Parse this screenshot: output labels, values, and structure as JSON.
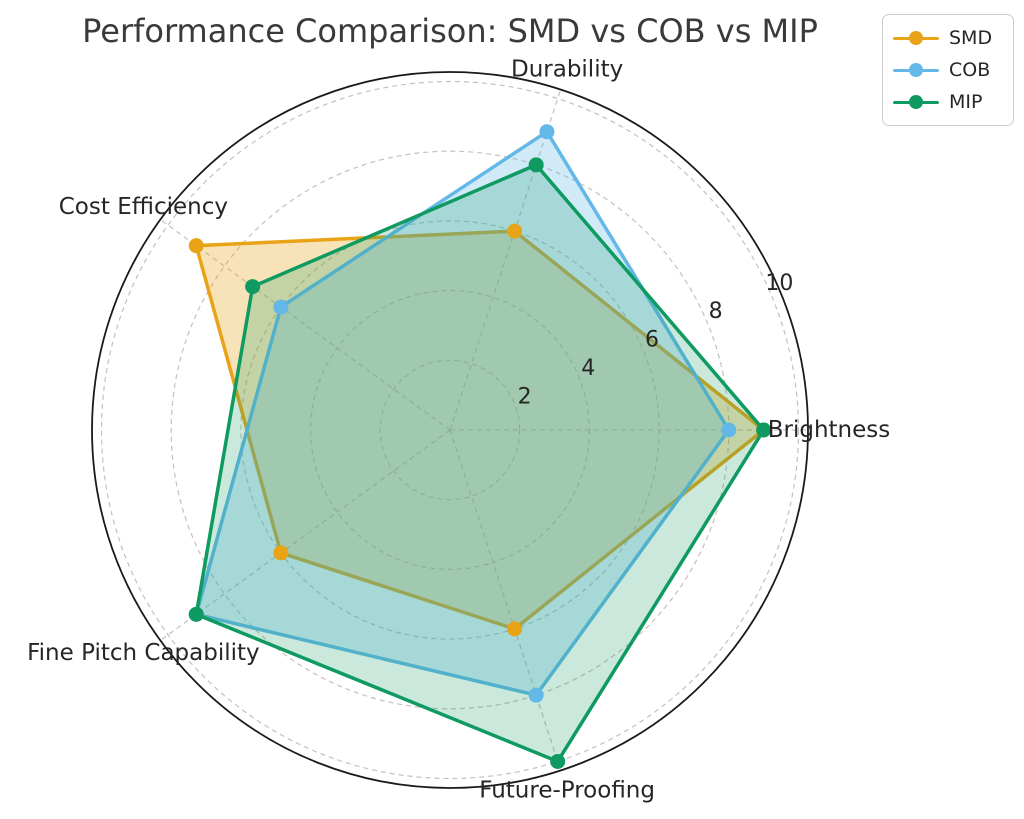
{
  "title": "Performance Comparison: SMD vs COB vs MIP",
  "legend": {
    "position": "upper-right",
    "items": [
      "SMD",
      "COB",
      "MIP"
    ]
  },
  "chart_data": {
    "type": "radar",
    "title": "Performance Comparison: SMD vs COB vs MIP",
    "categories": [
      "Brightness",
      "Durability",
      "Cost Efficiency",
      "Fine Pitch Capability",
      "Future-Proofing"
    ],
    "angles_deg": [
      0,
      72,
      144,
      216,
      288
    ],
    "series": [
      {
        "name": "SMD",
        "color": "#E8A317",
        "fill_opacity": 0.3,
        "values": [
          9,
          6,
          9,
          6,
          6
        ]
      },
      {
        "name": "COB",
        "color": "#64B8E8",
        "fill_opacity": 0.3,
        "values": [
          8,
          9,
          6,
          9,
          8
        ]
      },
      {
        "name": "MIP",
        "color": "#0E9A60",
        "fill_opacity": 0.22,
        "values": [
          9,
          8,
          7,
          9,
          10
        ]
      }
    ],
    "radial_ticks": [
      2,
      4,
      6,
      8,
      10
    ],
    "rmin": 0,
    "rmax": 10,
    "grid": true,
    "grid_style": "dashed",
    "tick_label_angle_deg": 24,
    "legend_position": "upper right"
  },
  "colors": {
    "background": "#ffffff",
    "title_text": "#3a3a3a",
    "label_text": "#262626",
    "tick_text": "#262626",
    "grid_line": "#c9bfbc",
    "outer_ring": "#1a1a1a",
    "legend_border": "#cccccc"
  }
}
